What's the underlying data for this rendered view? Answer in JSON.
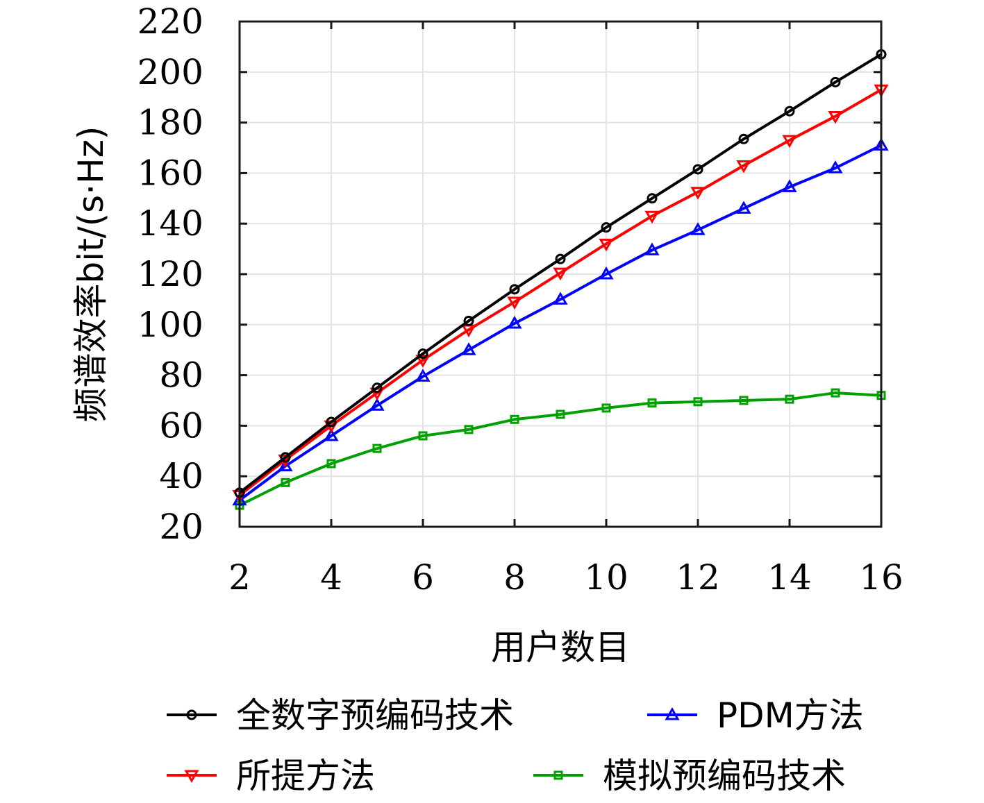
{
  "chart_data": {
    "type": "line",
    "xlabel": "用户数目",
    "ylabel": "频谱效率bit/(s·Hz)",
    "xlim": [
      2,
      16
    ],
    "ylim": [
      20,
      220
    ],
    "xticks": [
      2,
      4,
      6,
      8,
      10,
      12,
      14,
      16
    ],
    "yticks": [
      20,
      40,
      60,
      80,
      100,
      120,
      140,
      160,
      180,
      200,
      220
    ],
    "grid": true,
    "legend_position": "bottom",
    "x": [
      2,
      3,
      4,
      5,
      6,
      7,
      8,
      9,
      10,
      11,
      12,
      13,
      14,
      15,
      16
    ],
    "series": [
      {
        "name": "全数字预编码技术",
        "color": "#000000",
        "marker": "circle",
        "values": [
          33.5,
          47.5,
          61.5,
          75,
          88.5,
          101.5,
          114,
          126,
          138.5,
          150,
          161.5,
          173.5,
          184.5,
          196,
          207
        ]
      },
      {
        "name": "所提方法",
        "color": "#ff0000",
        "marker": "triangle-down",
        "values": [
          32.5,
          46.5,
          60,
          73,
          86,
          98,
          109,
          120.5,
          132,
          143,
          152.5,
          163,
          173,
          182.5,
          193
        ]
      },
      {
        "name": "PDM方法",
        "color": "#0000ff",
        "marker": "triangle-up",
        "values": [
          30.5,
          44,
          56,
          68,
          79.5,
          90,
          100.5,
          110,
          120,
          129.5,
          137.5,
          146,
          154.5,
          162,
          171
        ]
      },
      {
        "name": "模拟预编码技术",
        "color": "#00a000",
        "marker": "square",
        "values": [
          28.5,
          37.5,
          45,
          51,
          56,
          58.5,
          62.5,
          64.5,
          67,
          69,
          69.5,
          70,
          70.5,
          73,
          72
        ]
      }
    ]
  }
}
